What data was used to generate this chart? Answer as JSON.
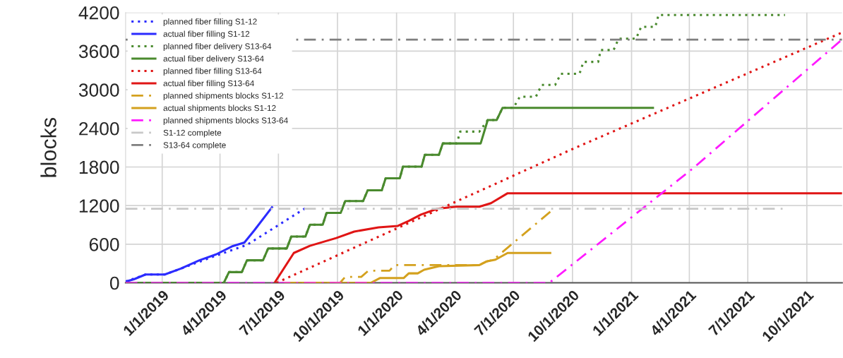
{
  "chart_data": {
    "type": "line",
    "ylabel": "blocks",
    "xlim": [
      "2018-11-05",
      "2021-11-25"
    ],
    "ylim": [
      0,
      4200
    ],
    "yticks": [
      0,
      600,
      1200,
      1800,
      2400,
      3000,
      3600,
      4200
    ],
    "xticks": [
      {
        "value": "2019-01-01",
        "label": "1/1/2019"
      },
      {
        "value": "2019-04-01",
        "label": "4/1/2019"
      },
      {
        "value": "2019-07-01",
        "label": "7/1/2019"
      },
      {
        "value": "2019-10-01",
        "label": "10/1/2019"
      },
      {
        "value": "2020-01-01",
        "label": "1/1/2020"
      },
      {
        "value": "2020-04-01",
        "label": "4/1/2020"
      },
      {
        "value": "2020-07-01",
        "label": "7/1/2020"
      },
      {
        "value": "2020-10-01",
        "label": "10/1/2020"
      },
      {
        "value": "2021-01-01",
        "label": "1/1/2021"
      },
      {
        "value": "2021-04-01",
        "label": "4/1/2021"
      },
      {
        "value": "2021-07-01",
        "label": "7/1/2021"
      },
      {
        "value": "2021-10-01",
        "label": "10/1/2021"
      }
    ],
    "grid": true,
    "legend": "top left",
    "series": [
      {
        "name": "planned fiber filling S1-12",
        "color": "#2b2bff",
        "line_style": "dotted",
        "x": [
          "2018-11-05",
          "2018-12-06",
          "2019-01-05",
          "2019-01-30",
          "2019-03-26",
          "2019-05-13",
          "2019-08-12"
        ],
        "values": [
          19,
          129,
          129,
          221,
          423,
          589,
          1160
        ]
      },
      {
        "name": "actual fiber filling S1-12",
        "color": "#2b2bff",
        "line_style": "solid",
        "x": [
          "2018-11-05",
          "2018-11-18",
          "2018-12-06",
          "2019-01-05",
          "2019-01-30",
          "2019-02-28",
          "2019-03-26",
          "2019-04-21",
          "2019-05-09",
          "2019-05-24",
          "2019-06-22"
        ],
        "values": [
          19,
          55,
          129,
          129,
          221,
          350,
          442,
          571,
          626,
          810,
          1186
        ]
      },
      {
        "name": "planned fiber delivery S13-64",
        "color": "#4a8a2e",
        "line_style": "dotted",
        "x": [
          "2018-11-05",
          "2019-04-07",
          "2019-04-15",
          "2019-05-05",
          "2019-05-13",
          "2019-06-07",
          "2019-06-15",
          "2019-07-14",
          "2019-07-21",
          "2019-08-12",
          "2019-08-19",
          "2019-09-08",
          "2019-09-14",
          "2019-10-06",
          "2019-10-13",
          "2019-11-10",
          "2019-11-17",
          "2019-12-09",
          "2019-12-15",
          "2020-01-06",
          "2020-01-11",
          "2020-02-09",
          "2020-02-14",
          "2020-03-07",
          "2020-03-13",
          "2020-04-04",
          "2020-04-09",
          "2020-05-09",
          "2020-05-22",
          "2020-06-05",
          "2020-06-14",
          "2020-07-01",
          "2020-07-11",
          "2020-08-05",
          "2020-08-14",
          "2020-09-04",
          "2020-09-13",
          "2020-10-12",
          "2020-10-18",
          "2020-11-10",
          "2020-11-14",
          "2020-12-04",
          "2020-12-12",
          "2021-01-08",
          "2021-01-16",
          "2021-02-07",
          "2021-02-12",
          "2021-08-28"
        ],
        "values": [
          0,
          0,
          166,
          166,
          350,
          350,
          534,
          534,
          718,
          718,
          903,
          903,
          1086,
          1086,
          1271,
          1271,
          1437,
          1437,
          1624,
          1624,
          1805,
          1805,
          1989,
          1989,
          2166,
          2166,
          2350,
          2350,
          2530,
          2530,
          2718,
          2718,
          2892,
          2892,
          3075,
          3075,
          3249,
          3249,
          3433,
          3433,
          3617,
          3617,
          3794,
          3794,
          3978,
          3978,
          4162,
          4162
        ]
      },
      {
        "name": "actual fiber delivery S13-64",
        "color": "#4a8a2e",
        "line_style": "solid",
        "x": [
          "2018-11-05",
          "2019-04-07",
          "2019-04-15",
          "2019-05-05",
          "2019-05-13",
          "2019-06-07",
          "2019-06-15",
          "2019-07-14",
          "2019-07-21",
          "2019-08-12",
          "2019-08-19",
          "2019-09-08",
          "2019-09-14",
          "2019-10-06",
          "2019-10-13",
          "2019-11-10",
          "2019-11-17",
          "2019-12-09",
          "2019-12-15",
          "2020-01-06",
          "2020-01-11",
          "2020-02-09",
          "2020-02-14",
          "2020-03-07",
          "2020-03-13",
          "2020-05-11",
          "2020-05-22",
          "2020-06-05",
          "2020-06-14",
          "2021-02-05"
        ],
        "values": [
          0,
          0,
          166,
          166,
          350,
          350,
          534,
          534,
          718,
          718,
          903,
          903,
          1086,
          1086,
          1271,
          1271,
          1437,
          1437,
          1624,
          1624,
          1805,
          1805,
          1989,
          1989,
          2166,
          2166,
          2530,
          2530,
          2718,
          2718
        ]
      },
      {
        "name": "planned fiber filling S13-64",
        "color": "#e01515",
        "line_style": "dotted",
        "x": [
          "2019-06-28",
          "2020-09-28",
          "2021-11-25"
        ],
        "values": [
          0,
          2066,
          3890
        ]
      },
      {
        "name": "actual fiber filling S13-64",
        "color": "#e01515",
        "line_style": "solid",
        "x": [
          "2019-06-25",
          "2019-07-25",
          "2019-08-19",
          "2019-09-29",
          "2019-10-27",
          "2019-12-04",
          "2020-01-03",
          "2020-01-20",
          "2020-02-08",
          "2020-03-04",
          "2020-04-02",
          "2020-05-09",
          "2020-05-27",
          "2020-06-22",
          "2021-11-25"
        ],
        "values": [
          0,
          464,
          575,
          696,
          796,
          862,
          884,
          961,
          1061,
          1149,
          1182,
          1182,
          1238,
          1392,
          1392
        ]
      },
      {
        "name": "planned shipments blocks S1-12",
        "color": "#d4a11e",
        "line_style": "dashdot",
        "x": [
          "2019-07-10",
          "2019-10-05",
          "2019-10-13",
          "2019-11-07",
          "2019-11-18",
          "2019-12-21",
          "2019-12-29",
          "2020-05-09",
          "2020-05-20",
          "2020-05-31",
          "2020-07-02",
          "2020-08-30"
        ],
        "values": [
          0,
          0,
          92,
          92,
          188,
          188,
          276,
          276,
          331,
          360,
          630,
          1127
        ]
      },
      {
        "name": "actual shipments blocks S1-12",
        "color": "#d4a11e",
        "line_style": "solid",
        "x": [
          "2019-07-10",
          "2019-11-22",
          "2019-12-06",
          "2020-01-12",
          "2020-01-20",
          "2020-02-03",
          "2020-02-13",
          "2020-03-07",
          "2020-05-09",
          "2020-05-20",
          "2020-06-03",
          "2020-06-22",
          "2020-08-29"
        ],
        "values": [
          0,
          0,
          74,
          74,
          147,
          147,
          203,
          258,
          276,
          331,
          360,
          464,
          464
        ]
      },
      {
        "name": "planned shipments blocks S13-64",
        "color": "#ff1aff",
        "line_style": "dashdot",
        "x": [
          "2018-11-05",
          "2020-08-26",
          "2021-04-08",
          "2021-11-22"
        ],
        "values": [
          0,
          0,
          1790,
          3757
        ]
      },
      {
        "name": "S1-12 complete",
        "color": "#c8c8c8",
        "line_style": "dashdot",
        "x": [
          "2018-11-05",
          "2021-08-28"
        ],
        "values": [
          1150,
          1150
        ]
      },
      {
        "name": "S13-64 complete",
        "color": "#7f7f7f",
        "line_style": "dashdot",
        "x": [
          "2018-11-05",
          "2021-11-25"
        ],
        "values": [
          3780,
          3780
        ]
      }
    ]
  }
}
